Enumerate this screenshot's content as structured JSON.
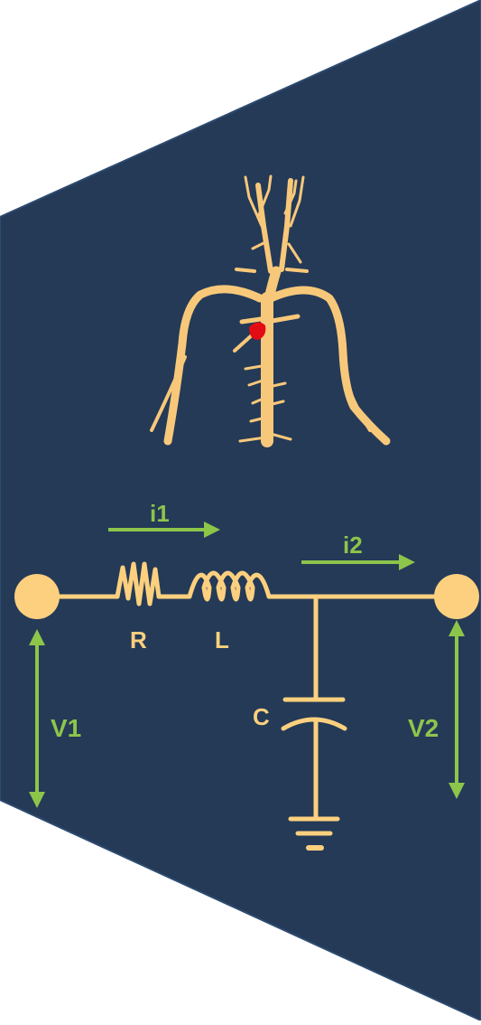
{
  "colors": {
    "panel": "#243a57",
    "panel_edge": "#2d4a70",
    "vessel": "#f8c87a",
    "circuit": "#fcd07e",
    "arrow": "#8dc54b",
    "lesion": "#e30b14"
  },
  "labels": {
    "i1": "i1",
    "i2": "i2",
    "R": "R",
    "L": "L",
    "C": "C",
    "V1": "V1",
    "V2": "V2"
  },
  "illustration": {
    "subject": "arterial-tree",
    "highlight": "red-lesion"
  }
}
